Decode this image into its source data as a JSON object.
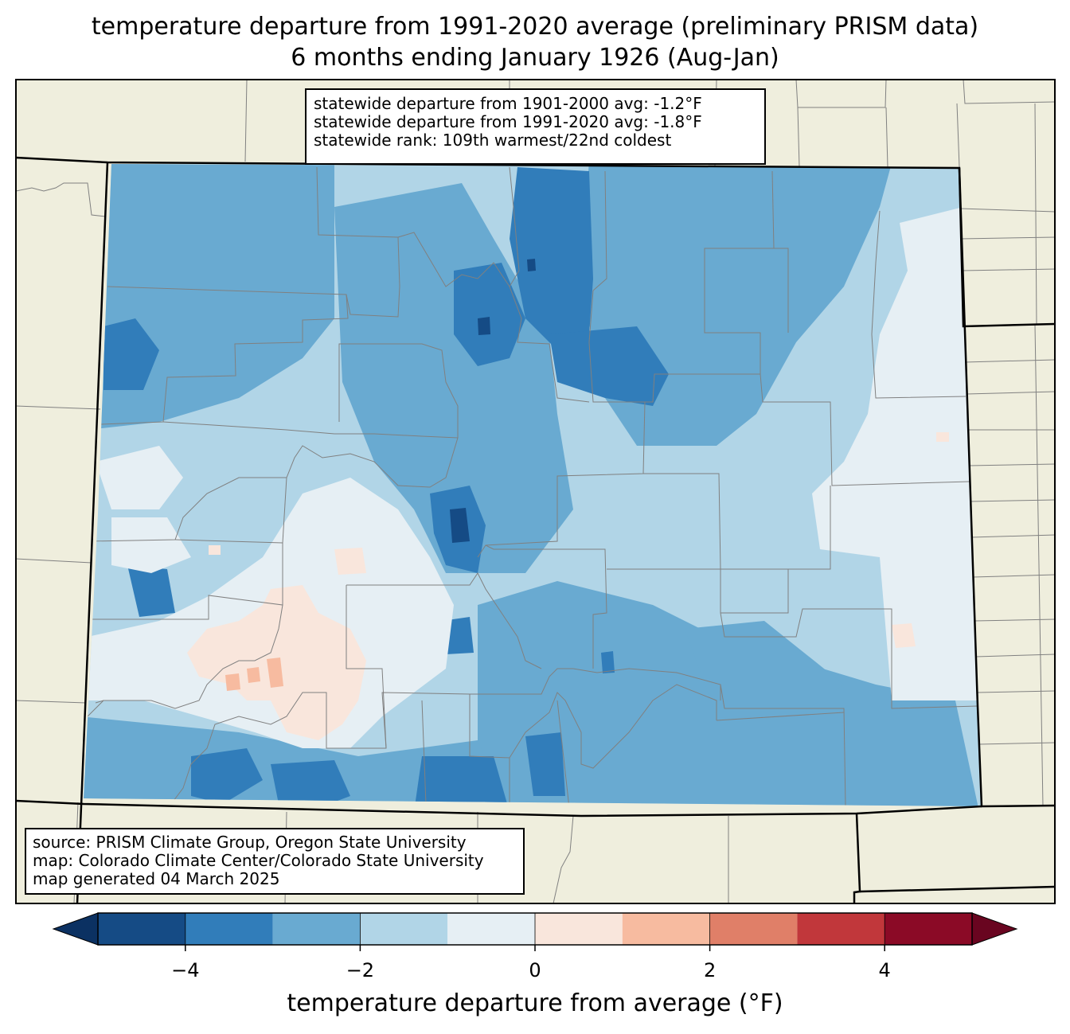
{
  "title": {
    "line1": "temperature departure from 1991-2020 average (preliminary PRISM data)",
    "line2": "6 months ending January 1926 (Aug-Jan)"
  },
  "stats": {
    "line1": "statewide departure from 1901-2000 avg: -1.2°F",
    "line2": "statewide departure from 1991-2020 avg: -1.8°F",
    "line3": "statewide rank: 109th warmest/22nd coldest"
  },
  "source": {
    "line1": "source: PRISM Climate Group, Oregon State University",
    "line2": "map: Colorado Climate Center/Colorado State University",
    "line3": "map generated 04 March 2025"
  },
  "colorbar": {
    "label": "temperature departure from average (°F)",
    "min": -5,
    "max": 5,
    "bins": [
      {
        "from": -5,
        "to": -4,
        "color": "#154b85"
      },
      {
        "from": -4,
        "to": -3,
        "color": "#317dba"
      },
      {
        "from": -3,
        "to": -2,
        "color": "#69aad1"
      },
      {
        "from": -2,
        "to": -1,
        "color": "#b1d5e7"
      },
      {
        "from": -1,
        "to": 0,
        "color": "#e6eff4"
      },
      {
        "from": 0,
        "to": 1,
        "color": "#f9e6dc"
      },
      {
        "from": 1,
        "to": 2,
        "color": "#f7bba0"
      },
      {
        "from": 2,
        "to": 3,
        "color": "#e07f68"
      },
      {
        "from": 3,
        "to": 4,
        "color": "#c1373b"
      },
      {
        "from": 4,
        "to": 5,
        "color": "#8b0a26"
      }
    ],
    "under_color": "#0b3162",
    "over_color": "#690520",
    "ticks": [
      {
        "value": -4,
        "label": "−4"
      },
      {
        "value": -2,
        "label": "−2"
      },
      {
        "value": 0,
        "label": "0"
      },
      {
        "value": 2,
        "label": "2"
      },
      {
        "value": 4,
        "label": "4"
      }
    ]
  },
  "colors": {
    "land_background": "#efeedd",
    "county_lines": "#808080",
    "state_lines": "#000000"
  }
}
